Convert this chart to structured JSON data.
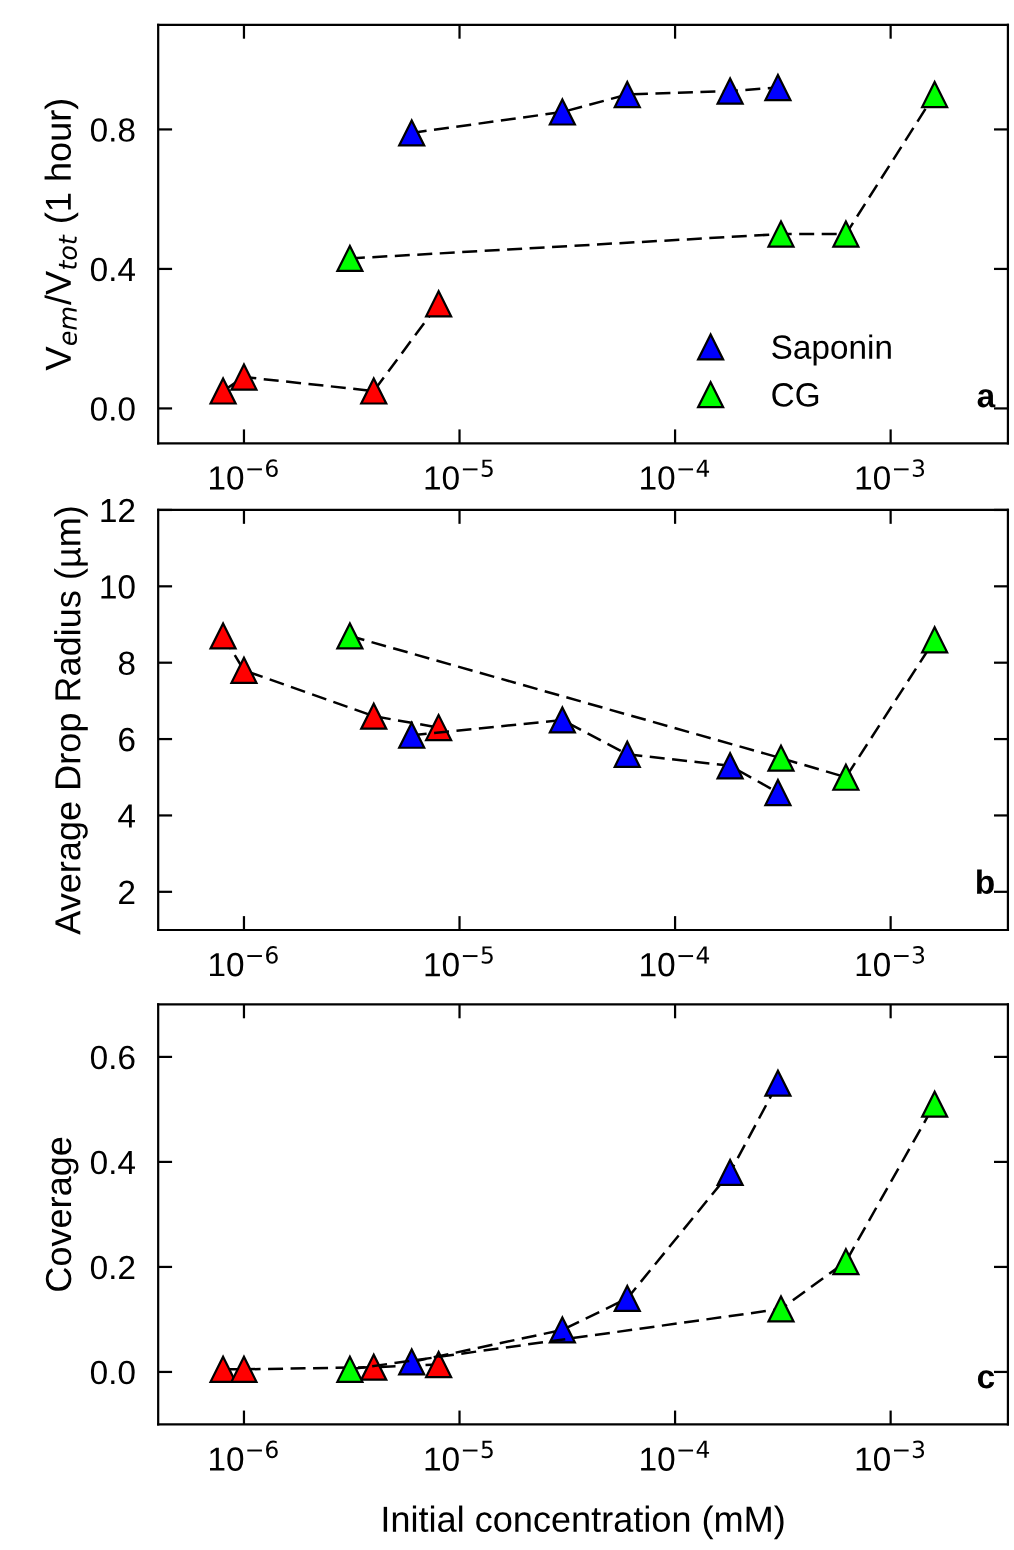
{
  "chart_data": [
    {
      "type": "line",
      "ylabel": "V$_{em}$/V$_{tot}$ (1 hour)",
      "annotations": [
        "a"
      ],
      "log": "x",
      "marker": "triangle",
      "line_style": "dashed",
      "grid": false,
      "legend": "bottom right",
      "xlim": [
        4e-07,
        0.0035
      ],
      "xticks": [
        {
          "value": 1e-06,
          "label": "10$^{−6}$"
        },
        {
          "value": 1e-05,
          "label": "10$^{−5}$"
        },
        {
          "value": 0.0001,
          "label": "10$^{−4}$"
        },
        {
          "value": 0.001,
          "label": "10$^{−3}$"
        }
      ],
      "ylim": [
        -0.1,
        1.1
      ],
      "yticks": [
        {
          "value": 0,
          "label": "0.0"
        },
        {
          "value": 0.4,
          "label": "0.4"
        },
        {
          "value": 0.8,
          "label": "0.8"
        }
      ],
      "series": [
        {
          "color": "#ff0000",
          "x": [
            8e-07,
            1e-06,
            4e-06,
            8e-06
          ],
          "values": [
            0.05,
            0.09,
            0.05,
            0.3
          ]
        },
        {
          "name": "Saponin",
          "color": "#0000ff",
          "x": [
            6e-06,
            3e-05,
            6e-05,
            0.00018,
            0.0003
          ],
          "values": [
            0.79,
            0.85,
            0.9,
            0.91,
            0.92
          ]
        },
        {
          "name": "CG",
          "color": "#00ff00",
          "x": [
            3.1e-06,
            0.00031,
            0.00062,
            0.0016
          ],
          "values": [
            0.43,
            0.5,
            0.5,
            0.9
          ]
        }
      ]
    },
    {
      "type": "line",
      "ylabel": "Average Drop Radius (µm)",
      "annotations": [
        "b"
      ],
      "log": "x",
      "marker": "triangle",
      "line_style": "dashed",
      "grid": false,
      "xlim": [
        4e-07,
        0.0035
      ],
      "xticks": [
        {
          "value": 1e-06,
          "label": "10$^{−6}$"
        },
        {
          "value": 1e-05,
          "label": "10$^{−5}$"
        },
        {
          "value": 0.0001,
          "label": "10$^{−4}$"
        },
        {
          "value": 0.001,
          "label": "10$^{−3}$"
        }
      ],
      "ylim": [
        1,
        12
      ],
      "yticks": [
        2,
        4,
        6,
        8,
        10,
        12
      ],
      "series": [
        {
          "color": "#ff0000",
          "x": [
            8e-07,
            1e-06,
            4e-06,
            8e-06
          ],
          "values": [
            8.7,
            7.8,
            6.6,
            6.3
          ]
        },
        {
          "color": "#0000ff",
          "x": [
            6e-06,
            3e-05,
            6e-05,
            0.00018,
            0.0003
          ],
          "values": [
            6.1,
            6.5,
            5.6,
            5.3,
            4.6
          ]
        },
        {
          "color": "#00ff00",
          "x": [
            3.1e-06,
            0.00031,
            0.00062,
            0.0016
          ],
          "values": [
            8.7,
            5.5,
            5.0,
            8.6
          ]
        }
      ]
    },
    {
      "type": "line",
      "ylabel": "Coverage",
      "xlabel": "Initial concentration (mM)",
      "annotations": [
        "c"
      ],
      "log": "x",
      "marker": "triangle",
      "line_style": "dashed",
      "grid": false,
      "xlim": [
        4e-07,
        0.0035
      ],
      "xticks": [
        {
          "value": 1e-06,
          "label": "10$^{−6}$"
        },
        {
          "value": 1e-05,
          "label": "10$^{−5}$"
        },
        {
          "value": 0.0001,
          "label": "10$^{−4}$"
        },
        {
          "value": 0.001,
          "label": "10$^{−3}$"
        }
      ],
      "ylim": [
        -0.1,
        0.7
      ],
      "yticks": [
        {
          "value": 0,
          "label": "0.0"
        },
        {
          "value": 0.2,
          "label": "0.2"
        },
        {
          "value": 0.4,
          "label": "0.4"
        },
        {
          "value": 0.6,
          "label": "0.6"
        }
      ],
      "series": [
        {
          "color": "#ff0000",
          "x": [
            8e-07,
            1e-06,
            4e-06,
            8e-06
          ],
          "values": [
            0.005,
            0.005,
            0.009,
            0.014
          ]
        },
        {
          "color": "#0000ff",
          "x": [
            6e-06,
            3e-05,
            6e-05,
            0.00018,
            0.0003
          ],
          "values": [
            0.019,
            0.08,
            0.14,
            0.38,
            0.55
          ]
        },
        {
          "color": "#00ff00",
          "x": [
            3.1e-06,
            0.00031,
            0.00062,
            0.0016
          ],
          "values": [
            0.005,
            0.12,
            0.21,
            0.51
          ]
        }
      ]
    }
  ]
}
